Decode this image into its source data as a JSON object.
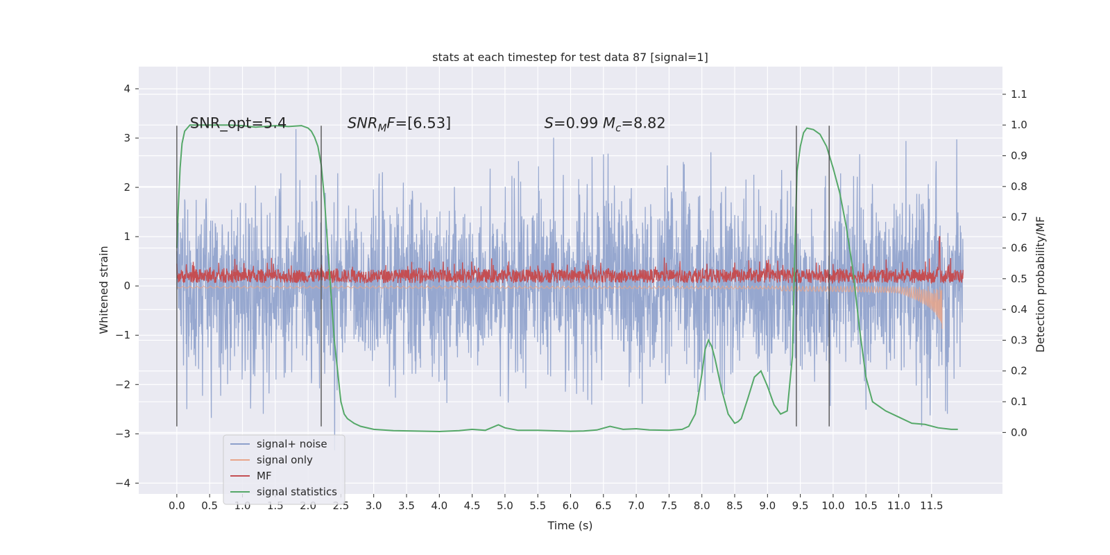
{
  "chart_data": {
    "type": "line",
    "title": "stats at each timestep for test data 87 [signal=1]",
    "xlabel": "Time (s)",
    "ylabel_left": "Whitened strain",
    "ylabel_right": "Detection probability/MF",
    "xlim": [
      -0.58,
      12.58
    ],
    "ylim_left": [
      -4.22,
      4.45
    ],
    "ylim_right": [
      -0.2,
      1.19
    ],
    "x_ticks": [
      0.0,
      0.5,
      1.0,
      1.5,
      2.0,
      2.5,
      3.0,
      3.5,
      4.0,
      4.5,
      5.0,
      5.5,
      6.0,
      6.5,
      7.0,
      7.5,
      8.0,
      8.5,
      9.0,
      9.5,
      10.0,
      10.5,
      11.0,
      11.5
    ],
    "x_tick_labels": [
      "0.0",
      "0.5",
      "1.0",
      "1.5",
      "2.0",
      "2.5",
      "3.0",
      "3.5",
      "4.0",
      "4.5",
      "5.0",
      "5.5",
      "6.0",
      "6.5",
      "7.0",
      "7.5",
      "8.0",
      "8.5",
      "9.0",
      "9.5",
      "10.0",
      "10.5",
      "11.0",
      "11.5"
    ],
    "y_left_ticks": [
      4,
      3,
      2,
      1,
      0,
      -1,
      -2,
      -3,
      -4
    ],
    "y_left_tick_labels": [
      "4",
      "3",
      "2",
      "1",
      "0",
      "−1",
      "−2",
      "−3",
      "−4"
    ],
    "y_right_ticks": [
      1.1,
      1.0,
      0.9,
      0.8,
      0.7,
      0.6,
      0.5,
      0.4,
      0.3,
      0.2,
      0.1,
      0.0
    ],
    "y_right_tick_labels": [
      "1.1",
      "1.0",
      "0.9",
      "0.8",
      "0.7",
      "0.6",
      "0.5",
      "0.4",
      "0.3",
      "0.2",
      "0.1",
      "0.0"
    ],
    "grid": true,
    "annotations": [
      {
        "text": "SNR_opt=5.4",
        "x": 0.2,
        "y_right": 0.99
      },
      {
        "text": "SNR_MF=[6.53]",
        "x": 2.6,
        "y_right": 0.99
      },
      {
        "text": "S=0.99   M_c=8.82",
        "x": 5.6,
        "y_right": 0.99
      }
    ],
    "vertical_markers": [
      0.0,
      2.2,
      9.44,
      9.94
    ],
    "vertical_marker_range_left": [
      -2.85,
      3.25
    ],
    "legend": {
      "placement": "lower-left",
      "entries": [
        "signal+ noise",
        "signal only",
        "MF",
        "signal statistics"
      ]
    },
    "series": [
      {
        "name": "signal+ noise",
        "axis": "left",
        "color": "#8da0cb",
        "kind": "noise",
        "x_range": [
          0.0,
          11.98
        ],
        "approx_std": 0.9,
        "approx_range": [
          -3.7,
          4.1
        ]
      },
      {
        "name": "signal only",
        "axis": "left",
        "color": "#e8a58a",
        "kind": "chirp",
        "x_range": [
          0.0,
          11.66
        ],
        "peak_negative": -0.87,
        "peak_time": 11.66
      },
      {
        "name": "MF",
        "axis": "left",
        "color": "#c44e52",
        "kind": "band",
        "x_range": [
          0.0,
          11.98
        ],
        "center": 0.2,
        "spike": {
          "x": 11.62,
          "y": 1.0
        }
      },
      {
        "name": "signal statistics",
        "axis": "right",
        "color": "#55a868",
        "x": [
          0.0,
          0.02,
          0.05,
          0.08,
          0.12,
          0.16,
          0.2,
          0.3,
          0.5,
          0.8,
          1.0,
          1.2,
          1.5,
          1.7,
          1.9,
          2.0,
          2.05,
          2.1,
          2.15,
          2.2,
          2.25,
          2.3,
          2.4,
          2.5,
          2.55,
          2.6,
          2.7,
          2.8,
          3.0,
          3.3,
          3.6,
          4.0,
          4.3,
          4.5,
          4.7,
          4.9,
          5.0,
          5.2,
          5.5,
          6.0,
          6.2,
          6.4,
          6.6,
          6.8,
          7.0,
          7.2,
          7.5,
          7.7,
          7.8,
          7.9,
          8.0,
          8.05,
          8.1,
          8.15,
          8.2,
          8.3,
          8.4,
          8.5,
          8.55,
          8.6,
          8.7,
          8.8,
          8.9,
          9.0,
          9.1,
          9.2,
          9.3,
          9.38,
          9.42,
          9.45,
          9.5,
          9.55,
          9.6,
          9.7,
          9.8,
          9.9,
          10.0,
          10.1,
          10.2,
          10.3,
          10.4,
          10.5,
          10.6,
          10.8,
          11.0,
          11.2,
          11.4,
          11.6,
          11.8,
          11.9
        ],
        "values": [
          0.6,
          0.72,
          0.86,
          0.94,
          0.98,
          0.99,
          1.0,
          1.0,
          1.0,
          1.0,
          0.998,
          0.993,
          0.998,
          0.995,
          0.998,
          0.99,
          0.98,
          0.96,
          0.93,
          0.87,
          0.76,
          0.6,
          0.3,
          0.1,
          0.06,
          0.045,
          0.03,
          0.02,
          0.01,
          0.006,
          0.005,
          0.003,
          0.006,
          0.01,
          0.007,
          0.025,
          0.015,
          0.007,
          0.007,
          0.004,
          0.005,
          0.008,
          0.02,
          0.01,
          0.012,
          0.008,
          0.007,
          0.01,
          0.02,
          0.06,
          0.19,
          0.27,
          0.3,
          0.28,
          0.24,
          0.14,
          0.06,
          0.03,
          0.035,
          0.045,
          0.11,
          0.18,
          0.2,
          0.15,
          0.09,
          0.06,
          0.07,
          0.25,
          0.62,
          0.85,
          0.93,
          0.975,
          0.99,
          0.985,
          0.97,
          0.93,
          0.86,
          0.78,
          0.67,
          0.53,
          0.34,
          0.18,
          0.1,
          0.07,
          0.05,
          0.03,
          0.026,
          0.015,
          0.01,
          0.01
        ]
      }
    ]
  }
}
